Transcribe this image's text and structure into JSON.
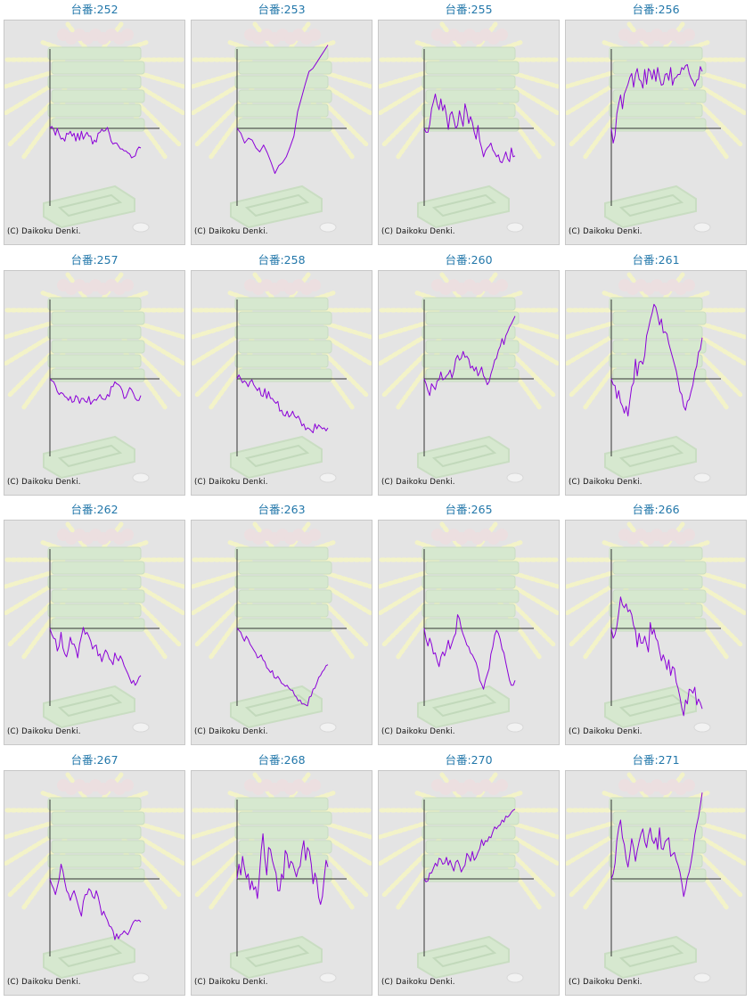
{
  "copyright": "(C) Daikoku Denki.",
  "colors": {
    "line": "#8b00d8",
    "title": "#2277aa",
    "panel": "#e4e4e4",
    "axis": "#333333",
    "background_art": "#d6e8cf",
    "rays": "#f3f3c8"
  },
  "chart_data": [
    {
      "type": "line",
      "title": "台番:252",
      "values": [
        0,
        2,
        -1,
        -7,
        0,
        -6,
        -11,
        -10,
        -13,
        -5,
        -6,
        -3,
        -8,
        -5,
        -13,
        -5,
        -12,
        -3,
        -11,
        -7,
        -4,
        -8,
        -8,
        -16,
        -12,
        -14,
        -5,
        -4,
        -1,
        -3,
        -2,
        1,
        -5,
        -13,
        -16,
        -15,
        -15,
        -18,
        -21,
        -21,
        -23,
        -23,
        -25,
        -26,
        -30,
        -29,
        -28,
        -22,
        -19,
        -20
      ]
    },
    {
      "type": "line",
      "title": "台番:253",
      "values": [
        0,
        -5,
        -15,
        -10,
        -12,
        -20,
        -24,
        -17,
        -25,
        -35,
        -46,
        -38,
        -35,
        -29,
        -19,
        -8,
        17,
        31,
        45,
        58,
        61,
        67,
        73,
        79,
        85
      ]
    },
    {
      "type": "line",
      "title": "台番:255",
      "values": [
        0,
        -4,
        -4,
        4,
        20,
        27,
        35,
        25,
        19,
        30,
        18,
        24,
        13,
        -1,
        14,
        17,
        9,
        0,
        3,
        18,
        10,
        2,
        25,
        17,
        5,
        12,
        6,
        -4,
        -11,
        3,
        -13,
        -20,
        -29,
        -23,
        -20,
        -18,
        -15,
        -22,
        -25,
        -29,
        -27,
        -34,
        -35,
        -30,
        -24,
        -31,
        -34,
        -20,
        -29,
        -28
      ]
    },
    {
      "type": "line",
      "title": "台番:256",
      "values": [
        0,
        -15,
        -7,
        15,
        25,
        34,
        20,
        35,
        40,
        45,
        52,
        56,
        42,
        55,
        61,
        50,
        48,
        41,
        60,
        45,
        61,
        58,
        50,
        60,
        48,
        62,
        52,
        44,
        45,
        55,
        56,
        49,
        62,
        44,
        51,
        52,
        55,
        55,
        62,
        60,
        64,
        65,
        56,
        51,
        48,
        43,
        49,
        50,
        63,
        58
      ]
    },
    {
      "type": "line",
      "title": "台番:257",
      "values": [
        0,
        -2,
        -3,
        -7,
        -13,
        -16,
        -14,
        -15,
        -18,
        -19,
        -22,
        -18,
        -24,
        -23,
        -17,
        -19,
        -25,
        -20,
        -20,
        -23,
        -24,
        -18,
        -26,
        -23,
        -21,
        -22,
        -19,
        -16,
        -20,
        -21,
        -21,
        -16,
        -18,
        -8,
        -8,
        -3,
        -5,
        -6,
        -8,
        -12,
        -20,
        -19,
        -14,
        -9,
        -11,
        -15,
        -20,
        -22,
        -22,
        -17
      ]
    },
    {
      "type": "line",
      "title": "台番:258",
      "values": [
        0,
        4,
        0,
        -4,
        -2,
        -4,
        -8,
        -3,
        -1,
        -6,
        -9,
        -12,
        -9,
        -17,
        -18,
        -10,
        -20,
        -13,
        -20,
        -20,
        -23,
        -25,
        -23,
        -33,
        -32,
        -37,
        -38,
        -33,
        -39,
        -37,
        -33,
        -38,
        -40,
        -38,
        -42,
        -48,
        -46,
        -52,
        -50,
        -51,
        -53,
        -55,
        -46,
        -51,
        -47,
        -49,
        -51,
        -50,
        -53,
        -50
      ]
    },
    {
      "type": "line",
      "title": "台番:260",
      "values": [
        0,
        -5,
        -12,
        -17,
        -5,
        -8,
        -11,
        -2,
        -1,
        7,
        -1,
        0,
        3,
        5,
        9,
        1,
        8,
        20,
        24,
        19,
        21,
        28,
        22,
        23,
        20,
        11,
        13,
        8,
        12,
        3,
        7,
        12,
        3,
        0,
        -6,
        -3,
        5,
        11,
        19,
        21,
        29,
        33,
        41,
        35,
        44,
        48,
        53,
        56,
        60,
        64
      ]
    },
    {
      "type": "line",
      "title": "台番:261",
      "values": [
        0,
        -6,
        -7,
        -20,
        -12,
        -24,
        -28,
        -35,
        -28,
        -38,
        -22,
        -8,
        -4,
        20,
        3,
        17,
        18,
        15,
        24,
        44,
        51,
        60,
        67,
        76,
        73,
        65,
        55,
        61,
        47,
        48,
        46,
        36,
        29,
        22,
        15,
        8,
        -2,
        -13,
        -16,
        -28,
        -32,
        -23,
        -21,
        -13,
        -6,
        7,
        13,
        27,
        30,
        42
      ]
    },
    {
      "type": "line",
      "title": "台番:262",
      "values": [
        0,
        -6,
        -10,
        -11,
        -23,
        -18,
        -4,
        -20,
        -26,
        -29,
        -21,
        -9,
        -16,
        -16,
        -21,
        -30,
        -16,
        -8,
        1,
        -6,
        -4,
        -8,
        -13,
        -21,
        -18,
        -17,
        -28,
        -26,
        -34,
        -27,
        -22,
        -25,
        -31,
        -33,
        -37,
        -25,
        -30,
        -33,
        -28,
        -32,
        -38,
        -42,
        -46,
        -51,
        -56,
        -53,
        -58,
        -55,
        -50,
        -48
      ]
    },
    {
      "type": "line",
      "title": "台番:263",
      "values": [
        0,
        -2,
        -4,
        -9,
        -13,
        -8,
        -11,
        -16,
        -19,
        -22,
        -25,
        -30,
        -29,
        -27,
        -32,
        -34,
        -40,
        -42,
        -45,
        -43,
        -50,
        -51,
        -49,
        -52,
        -56,
        -57,
        -59,
        -58,
        -61,
        -63,
        -63,
        -68,
        -70,
        -74,
        -73,
        -77,
        -77,
        -78,
        -79,
        -70,
        -69,
        -62,
        -61,
        -56,
        -50,
        -48,
        -44,
        -42,
        -38,
        -37
      ]
    },
    {
      "type": "line",
      "title": "台番:265",
      "values": [
        0,
        -11,
        -18,
        -10,
        -16,
        -26,
        -25,
        -33,
        -39,
        -29,
        -24,
        -28,
        -21,
        -12,
        -21,
        -15,
        -9,
        -5,
        14,
        10,
        0,
        -6,
        -11,
        -17,
        -19,
        -25,
        -27,
        -31,
        -35,
        -42,
        -53,
        -57,
        -62,
        -53,
        -47,
        -41,
        -26,
        -19,
        -7,
        -2,
        -5,
        -11,
        -21,
        -25,
        -35,
        -44,
        -53,
        -58,
        -58,
        -53
      ]
    },
    {
      "type": "line",
      "title": "台番:266",
      "values": [
        0,
        -10,
        -6,
        2,
        16,
        32,
        24,
        21,
        25,
        17,
        19,
        14,
        3,
        -2,
        -19,
        -5,
        -15,
        -15,
        -8,
        -16,
        -24,
        6,
        -6,
        -1,
        -10,
        -13,
        -23,
        -33,
        -27,
        -33,
        -42,
        -32,
        -48,
        -39,
        -41,
        -55,
        -61,
        -70,
        -81,
        -89,
        -73,
        -77,
        -62,
        -63,
        -66,
        -60,
        -78,
        -72,
        -76,
        -82
      ]
    },
    {
      "type": "line",
      "title": "台番:267",
      "values": [
        0,
        -6,
        -10,
        -16,
        -8,
        0,
        15,
        8,
        -3,
        -12,
        -15,
        -22,
        -16,
        -12,
        -18,
        -25,
        -32,
        -38,
        -23,
        -16,
        -16,
        -10,
        -12,
        -18,
        -20,
        -12,
        -18,
        -27,
        -37,
        -33,
        -38,
        -42,
        -48,
        -49,
        -53,
        -62,
        -56,
        -61,
        -57,
        -56,
        -53,
        -55,
        -57,
        -53,
        -48,
        -44,
        -42,
        -43,
        -42,
        -44
      ]
    },
    {
      "type": "line",
      "title": "台番:268",
      "values": [
        0,
        15,
        4,
        23,
        11,
        1,
        5,
        -11,
        -2,
        -11,
        -8,
        -20,
        2,
        29,
        46,
        21,
        4,
        32,
        30,
        19,
        12,
        6,
        -12,
        -12,
        5,
        0,
        29,
        25,
        11,
        18,
        16,
        9,
        2,
        10,
        13,
        29,
        39,
        19,
        32,
        28,
        15,
        -5,
        6,
        -1,
        -19,
        -26,
        -18,
        1,
        19,
        12
      ]
    },
    {
      "type": "line",
      "title": "台番:270",
      "values": [
        0,
        -3,
        -2,
        6,
        6,
        11,
        16,
        13,
        21,
        20,
        15,
        16,
        22,
        14,
        19,
        13,
        8,
        17,
        19,
        14,
        7,
        11,
        14,
        26,
        23,
        18,
        28,
        19,
        22,
        27,
        31,
        40,
        34,
        39,
        38,
        43,
        42,
        48,
        53,
        51,
        54,
        55,
        60,
        58,
        64,
        63,
        65,
        68,
        70,
        71
      ]
    },
    {
      "type": "line",
      "title": "台番:271",
      "values": [
        0,
        5,
        16,
        39,
        52,
        60,
        42,
        35,
        20,
        12,
        25,
        41,
        32,
        18,
        29,
        38,
        46,
        51,
        38,
        32,
        44,
        52,
        40,
        36,
        42,
        30,
        52,
        31,
        30,
        38,
        40,
        42,
        23,
        25,
        27,
        19,
        14,
        7,
        -4,
        -18,
        -10,
        1,
        7,
        17,
        29,
        45,
        55,
        63,
        75,
        88
      ]
    }
  ]
}
